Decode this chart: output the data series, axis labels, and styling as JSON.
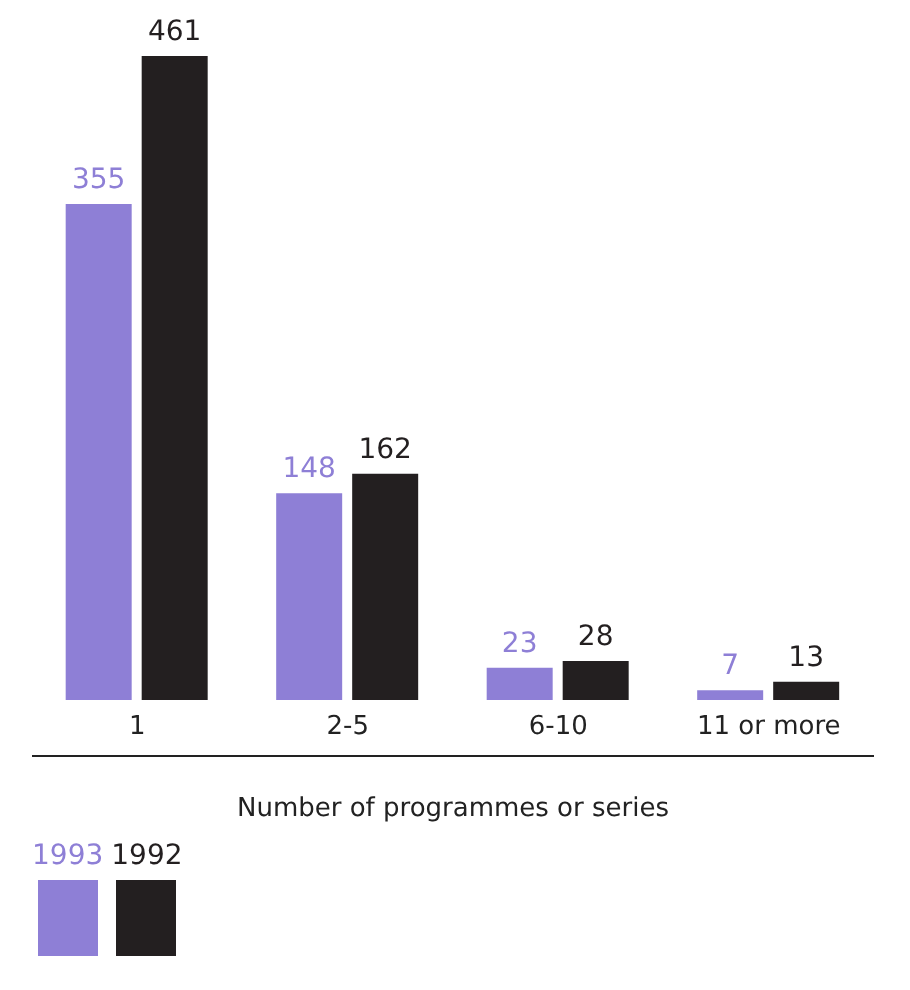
{
  "chart_data": {
    "type": "bar",
    "xlabel": "Number of programmes or series",
    "categories": [
      "1",
      "2-5",
      "6-10",
      "11 or more"
    ],
    "series": [
      {
        "name": "1993",
        "color": "#8e7fd6",
        "values": [
          355,
          148,
          23,
          7
        ]
      },
      {
        "name": "1992",
        "color": "#231f20",
        "values": [
          461,
          162,
          28,
          13
        ]
      }
    ],
    "data_labels": true,
    "legend": "bottom left"
  }
}
